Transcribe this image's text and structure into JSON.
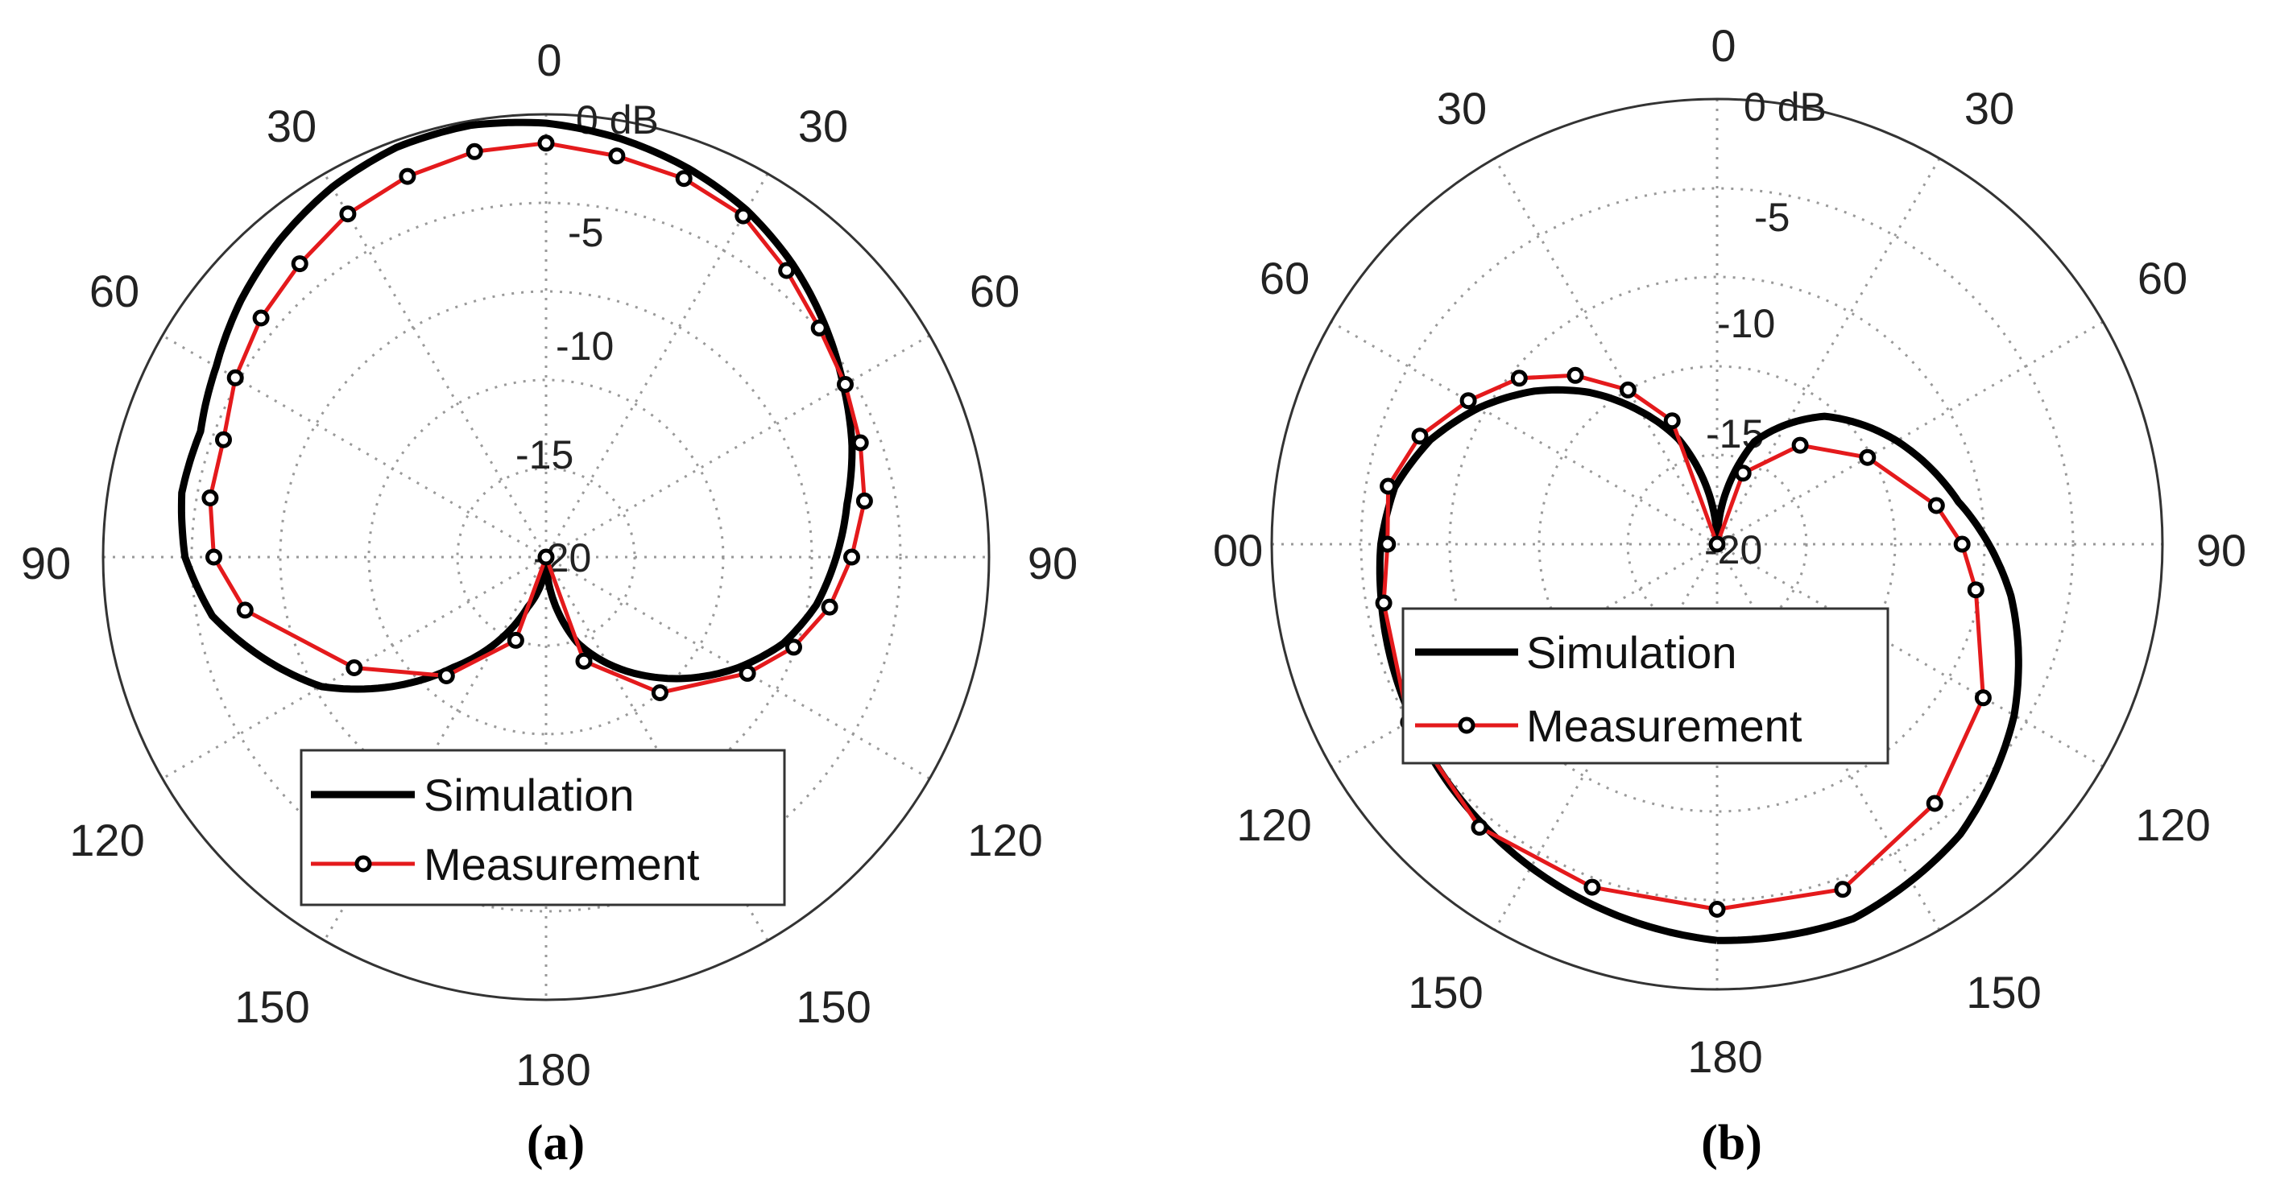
{
  "chart_data": [
    {
      "type": "polar-line",
      "caption": "(a)",
      "r_tick_labels": [
        "0 dB",
        "-5",
        "-10",
        "-15",
        "-20"
      ],
      "r_range_db": [
        -20,
        0
      ],
      "angle_labels": [
        "0",
        "30",
        "30",
        "60",
        "60",
        "90",
        "90",
        "120",
        "120",
        "150",
        "150",
        "180"
      ],
      "legend": {
        "placement": "bottom",
        "entries": [
          "Simulation",
          "Measurement"
        ]
      },
      "series": [
        {
          "name": "Simulation",
          "angles_deg": [
            -180,
            -160,
            -140,
            -120,
            -100,
            -90,
            -80,
            -70,
            -60,
            -50,
            -40,
            -30,
            -20,
            -10,
            0,
            10,
            20,
            30,
            40,
            50,
            60,
            70,
            80,
            90,
            100,
            110,
            120,
            140,
            160,
            180
          ],
          "values_db": [
            -20,
            -17.6,
            -13.5,
            -8.3,
            -4.7,
            -3.7,
            -3.3,
            -3.4,
            -2.8,
            -2.0,
            -1.3,
            -0.7,
            -0.3,
            -0.2,
            -0.4,
            -0.8,
            -1.3,
            -1.9,
            -2.7,
            -3.6,
            -4.5,
            -5.3,
            -6.2,
            -6.9,
            -7.6,
            -8.6,
            -10.0,
            -13.0,
            -15.9,
            -20
          ]
        },
        {
          "name": "Measurement",
          "angles_deg": [
            -180,
            -160,
            -140,
            -120,
            -100,
            -90,
            -80,
            -70,
            -60,
            -50,
            -40,
            -30,
            -20,
            -10,
            0,
            10,
            20,
            30,
            40,
            50,
            60,
            70,
            80,
            90,
            100,
            110,
            120,
            140,
            160,
            180
          ],
          "values_db": [
            -20,
            -16.0,
            -13.0,
            -10.0,
            -6.2,
            -5.0,
            -4.6,
            -4.5,
            -3.8,
            -3.2,
            -2.7,
            -2.1,
            -1.7,
            -1.4,
            -1.3,
            -1.6,
            -1.8,
            -2.2,
            -3.1,
            -3.9,
            -4.4,
            -4.9,
            -5.4,
            -6.2,
            -7.0,
            -8.1,
            -9.5,
            -12.0,
            -15.0,
            -20
          ]
        }
      ]
    },
    {
      "type": "polar-line",
      "caption": "(b)",
      "r_tick_labels": [
        "0 dB",
        "-5",
        "-10",
        "-15",
        "-20"
      ],
      "r_range_db": [
        -20,
        0
      ],
      "angle_labels": [
        "0",
        "30",
        "30",
        "60",
        "60",
        "00",
        "90",
        "120",
        "120",
        "150",
        "150",
        "180"
      ],
      "legend": {
        "placement": "middle",
        "entries": [
          "Simulation",
          "Measurement"
        ]
      },
      "series": [
        {
          "name": "Simulation",
          "angles_deg": [
            -180,
            -160,
            -140,
            -120,
            -100,
            -90,
            -80,
            -70,
            -60,
            -50,
            -40,
            -30,
            -20,
            0,
            20,
            40,
            60,
            80,
            90,
            100,
            120,
            140,
            160,
            180
          ],
          "values_db": [
            -2.2,
            -2.9,
            -3.6,
            -4.2,
            -4.7,
            -4.9,
            -5.3,
            -6.3,
            -7.7,
            -9.3,
            -11.1,
            -13.1,
            -15.0,
            -20,
            -15.1,
            -12.5,
            -10.7,
            -9.0,
            -7.8,
            -6.6,
            -4.6,
            -3.0,
            -2.1,
            -2.2
          ]
        },
        {
          "name": "Measurement",
          "angles_deg": [
            -180,
            -160,
            -140,
            -120,
            -100,
            -90,
            -80,
            -70,
            -60,
            -50,
            -40,
            -30,
            -20,
            0,
            20,
            40,
            60,
            80,
            90,
            100,
            120,
            140,
            160,
            180
          ],
          "values_db": [
            -3.6,
            -3.6,
            -3.4,
            -4.0,
            -4.8,
            -5.2,
            -5.0,
            -5.8,
            -7.1,
            -8.4,
            -10.1,
            -12.0,
            -14.1,
            -20,
            -16.6,
            -14.2,
            -12.2,
            -10.0,
            -9.0,
            -8.2,
            -6.2,
            -4.8,
            -3.5,
            -3.6
          ]
        }
      ]
    }
  ]
}
